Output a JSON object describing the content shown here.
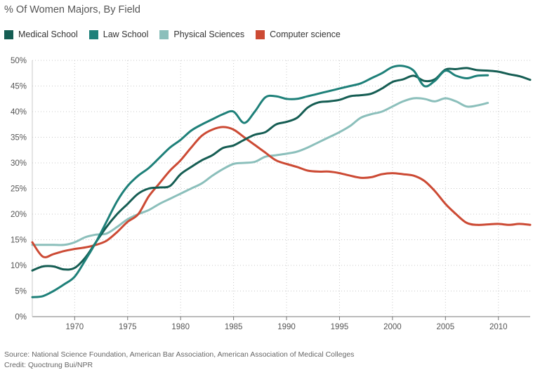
{
  "chart_data": {
    "type": "line",
    "title": "% Of Women Majors, By Field",
    "xlim": [
      1966,
      2013
    ],
    "ylim": [
      0,
      50
    ],
    "x_ticks": [
      1970,
      1975,
      1980,
      1985,
      1990,
      1995,
      2000,
      2005,
      2010
    ],
    "y_ticks": [
      0,
      5,
      10,
      15,
      20,
      25,
      30,
      35,
      40,
      45,
      50
    ],
    "y_tick_labels": [
      "0%",
      "5%",
      "10%",
      "15%",
      "20%",
      "25%",
      "30%",
      "35%",
      "40%",
      "45%",
      "50%"
    ],
    "grid": "dotted",
    "legend_position": "top-left",
    "series": [
      {
        "name": "Medical School",
        "color": "#155d53",
        "x": [
          1966,
          1967,
          1968,
          1969,
          1970,
          1971,
          1972,
          1973,
          1974,
          1975,
          1976,
          1977,
          1978,
          1979,
          1980,
          1981,
          1982,
          1983,
          1984,
          1985,
          1986,
          1987,
          1988,
          1989,
          1990,
          1991,
          1992,
          1993,
          1994,
          1995,
          1996,
          1997,
          1998,
          1999,
          2000,
          2001,
          2002,
          2003,
          2004,
          2005,
          2006,
          2007,
          2008,
          2009,
          2010,
          2011,
          2012,
          2013
        ],
        "y": [
          9.0,
          9.8,
          9.8,
          9.2,
          9.5,
          11.5,
          14.5,
          17.5,
          20.0,
          22.0,
          24.0,
          25.0,
          25.2,
          25.5,
          27.8,
          29.2,
          30.5,
          31.5,
          32.9,
          33.4,
          34.5,
          35.5,
          36.0,
          37.5,
          38.0,
          38.8,
          40.8,
          41.8,
          42.0,
          42.3,
          43.0,
          43.2,
          43.5,
          44.5,
          45.8,
          46.3,
          47.0,
          46.0,
          46.3,
          48.2,
          48.3,
          48.5,
          48.1,
          48.0,
          47.8,
          47.3,
          46.9,
          46.2
        ]
      },
      {
        "name": "Law School",
        "color": "#1e8079",
        "x": [
          1966,
          1967,
          1968,
          1969,
          1970,
          1971,
          1972,
          1973,
          1974,
          1975,
          1976,
          1977,
          1978,
          1979,
          1980,
          1981,
          1982,
          1983,
          1984,
          1985,
          1986,
          1987,
          1988,
          1989,
          1990,
          1991,
          1992,
          1993,
          1994,
          1995,
          1996,
          1997,
          1998,
          1999,
          2000,
          2001,
          2002,
          2003,
          2004,
          2005,
          2006,
          2007,
          2008,
          2009
        ],
        "y": [
          3.8,
          4.0,
          5.0,
          6.3,
          7.8,
          11.0,
          14.5,
          18.5,
          22.5,
          25.5,
          27.5,
          29.0,
          31.0,
          33.0,
          34.5,
          36.3,
          37.5,
          38.5,
          39.5,
          40.0,
          37.8,
          40.0,
          42.8,
          43.0,
          42.5,
          42.5,
          43.0,
          43.5,
          44.0,
          44.5,
          45.0,
          45.5,
          46.5,
          47.5,
          48.7,
          48.9,
          48.0,
          45.0,
          46.0,
          48.0,
          47.0,
          46.5,
          47.0,
          47.1
        ]
      },
      {
        "name": "Physical Sciences",
        "color": "#8bbfbb",
        "x": [
          1966,
          1967,
          1968,
          1969,
          1970,
          1971,
          1972,
          1973,
          1974,
          1975,
          1976,
          1977,
          1978,
          1979,
          1980,
          1981,
          1982,
          1983,
          1984,
          1985,
          1986,
          1987,
          1988,
          1989,
          1990,
          1991,
          1992,
          1993,
          1994,
          1995,
          1996,
          1997,
          1998,
          1999,
          2000,
          2001,
          2002,
          2003,
          2004,
          2005,
          2006,
          2007,
          2008,
          2009
        ],
        "y": [
          14.0,
          14.0,
          14.0,
          14.0,
          14.5,
          15.5,
          16.0,
          16.2,
          17.5,
          19.0,
          20.0,
          20.8,
          22.0,
          23.0,
          24.0,
          25.0,
          26.0,
          27.5,
          28.8,
          29.8,
          30.0,
          30.2,
          31.2,
          31.5,
          31.8,
          32.2,
          33.0,
          34.0,
          35.0,
          36.0,
          37.2,
          38.8,
          39.5,
          40.0,
          41.0,
          42.0,
          42.6,
          42.5,
          42.0,
          42.6,
          42.0,
          41.0,
          41.2,
          41.7
        ]
      },
      {
        "name": "Computer science",
        "color": "#cc4a34",
        "x": [
          1966,
          1967,
          1968,
          1969,
          1970,
          1971,
          1972,
          1973,
          1974,
          1975,
          1976,
          1977,
          1978,
          1979,
          1980,
          1981,
          1982,
          1983,
          1984,
          1985,
          1986,
          1987,
          1988,
          1989,
          1990,
          1991,
          1992,
          1993,
          1994,
          1995,
          1996,
          1997,
          1998,
          1999,
          2000,
          2001,
          2002,
          2003,
          2004,
          2005,
          2006,
          2007,
          2008,
          2009,
          2010,
          2011,
          2012,
          2013
        ],
        "y": [
          14.5,
          11.7,
          12.2,
          12.8,
          13.2,
          13.5,
          14.0,
          14.8,
          16.5,
          18.5,
          20.0,
          23.5,
          26.0,
          28.5,
          30.5,
          33.0,
          35.3,
          36.5,
          37.0,
          36.5,
          35.0,
          33.5,
          32.0,
          30.5,
          29.8,
          29.2,
          28.5,
          28.3,
          28.3,
          28.0,
          27.5,
          27.1,
          27.2,
          27.8,
          28.0,
          27.8,
          27.5,
          26.5,
          24.5,
          22.0,
          20.0,
          18.3,
          17.9,
          18.0,
          18.1,
          17.9,
          18.1,
          17.9
        ]
      }
    ]
  },
  "footer": {
    "source": "Source: National Science Foundation, American Bar Association, American Association of Medical Colleges",
    "credit": "Credit: Quoctrung Bui/NPR"
  }
}
